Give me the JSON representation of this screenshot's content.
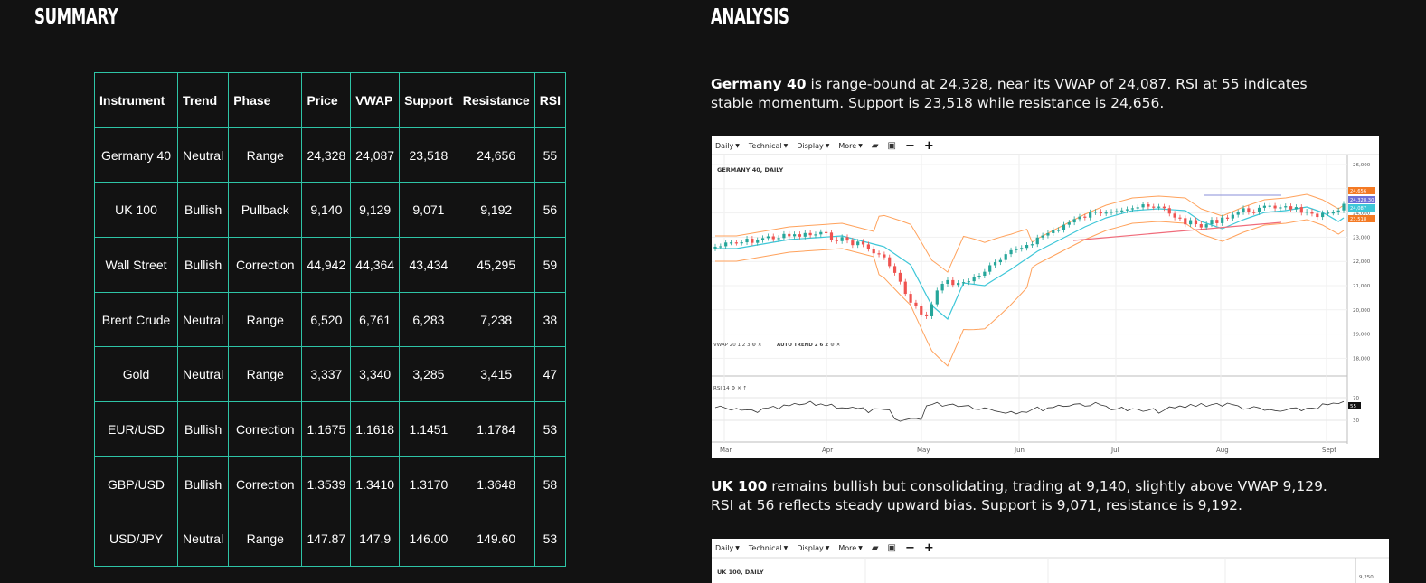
{
  "sections": {
    "summary_title": "SUMMARY",
    "analysis_title": "ANALYSIS"
  },
  "table": {
    "headers": [
      "Instrument",
      "Trend",
      "Phase",
      "Price",
      "VWAP",
      "Support",
      "Resistance",
      "RSI"
    ],
    "rows": [
      [
        "Germany 40",
        "Neutral",
        "Range",
        "24,328",
        "24,087",
        "23,518",
        "24,656",
        "55"
      ],
      [
        "UK 100",
        "Bullish",
        "Pullback",
        "9,140",
        "9,129",
        "9,071",
        "9,192",
        "56"
      ],
      [
        "Wall Street",
        "Bullish",
        "Correction",
        "44,942",
        "44,364",
        "43,434",
        "45,295",
        "59"
      ],
      [
        "Brent Crude",
        "Neutral",
        "Range",
        "6,520",
        "6,761",
        "6,283",
        "7,238",
        "38"
      ],
      [
        "Gold",
        "Neutral",
        "Range",
        "3,337",
        "3,340",
        "3,285",
        "3,415",
        "47"
      ],
      [
        "EUR/USD",
        "Bullish",
        "Correction",
        "1.1675",
        "1.1618",
        "1.1451",
        "1.1784",
        "53"
      ],
      [
        "GBP/USD",
        "Bullish",
        "Correction",
        "1.3539",
        "1.3410",
        "1.3170",
        "1.3648",
        "58"
      ],
      [
        "USD/JPY",
        "Neutral",
        "Range",
        "147.87",
        "147.9",
        "146.00",
        "149.60",
        "53"
      ]
    ]
  },
  "analysis": {
    "p1_name": "Germany 40",
    "p1_text": " is range-bound at 24,328, near its VWAP of 24,087. RSI at 55 indicates stable momentum. Support is 23,518 while resistance is 24,656.",
    "p2_name": "UK 100",
    "p2_text": " remains bullish but consolidating, trading at 9,140, slightly above VWAP 9,129. RSI at 56 reflects steady upward bias. Support is 9,071, resistance is 9,192."
  },
  "toolbar": {
    "daily": "Daily",
    "technical": "Technical",
    "display": "Display",
    "more": "More",
    "minus": "−",
    "plus": "+"
  },
  "chart1": {
    "title": "GERMANY 40, DAILY",
    "indicator_label": "VWAP 20 1 2 3",
    "autotrend_label": "AUTO TREND 2 6 2",
    "rsi_label": "RSI 14",
    "months": [
      "Mar",
      "Apr",
      "May",
      "Jun",
      "Jul",
      "Aug",
      "Sept"
    ],
    "y_ticks": [
      "26,000",
      "25,000",
      "24,000",
      "23,000",
      "22,000",
      "21,000",
      "20,000",
      "19,000",
      "18,000"
    ],
    "rsi_ticks": [
      "70",
      "30"
    ],
    "rsi_value": "55",
    "price_tags": [
      "24,656",
      "24,328.30",
      "24,087",
      "23,518"
    ],
    "colors": {
      "up": "#26a69a",
      "down": "#ef5350",
      "vwap": "#3ec7d8",
      "band": "#ffa25c",
      "trend": "#f06b7a"
    }
  },
  "chart2": {
    "title": "UK 100, DAILY",
    "y_tick": "9,250"
  }
}
